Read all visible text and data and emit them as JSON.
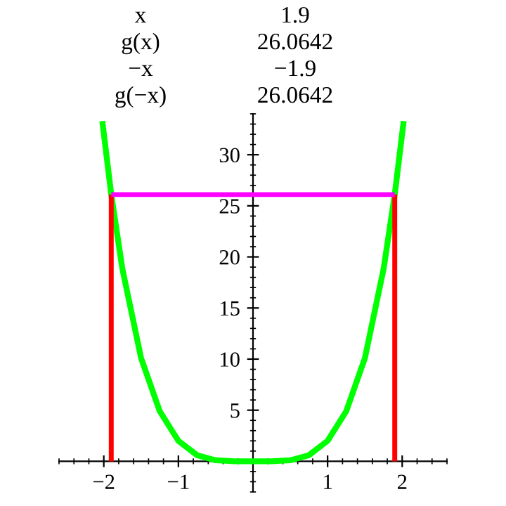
{
  "chart_data": {
    "type": "line",
    "annotations": [
      "x",
      "1.9",
      "g(x)",
      "26.0642",
      "−x",
      "−1.9",
      "g(−x)",
      "26.0642"
    ],
    "series": [
      {
        "color": "#00ff00",
        "x": [
          -2.02,
          -1.9,
          -1.75,
          -1.5,
          -1.25,
          -1,
          -0.75,
          -0.5,
          -0.25,
          0,
          0.25,
          0.5,
          0.75,
          1,
          1.25,
          1.5,
          1.75,
          1.9,
          2.02
        ],
        "values": [
          33.3,
          26.1,
          18.8,
          10.1,
          4.9,
          2,
          0.6,
          0.1,
          0,
          0,
          0,
          0.1,
          0.6,
          2,
          4.9,
          10.1,
          18.8,
          26.1,
          33.3
        ]
      },
      {
        "color": "#ff0000",
        "x": [
          -1.9,
          -1.9
        ],
        "values": [
          0,
          26.1
        ]
      },
      {
        "color": "#ff0000",
        "x": [
          1.9,
          1.9
        ],
        "values": [
          0,
          26.1
        ]
      },
      {
        "color": "#ff00ff",
        "x": [
          -1.9,
          1.9
        ],
        "values": [
          26.1,
          26.1
        ]
      }
    ],
    "xlim": [
      -2.6,
      2.6
    ],
    "ylim": [
      -3,
      34
    ],
    "xticks": [
      {
        "value": -2,
        "label": "−2"
      },
      {
        "value": -1,
        "label": "−1"
      },
      1,
      2
    ],
    "yticks": [
      5,
      10,
      15,
      20,
      25,
      30
    ],
    "grid": false,
    "legend": false,
    "marker": "none",
    "line_style": "solid"
  }
}
